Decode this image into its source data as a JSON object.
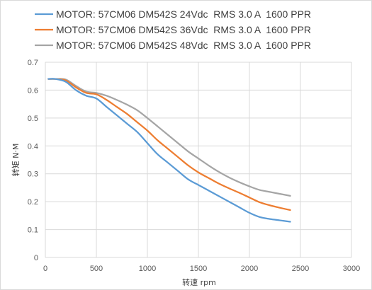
{
  "chart_data": {
    "type": "line",
    "title": "",
    "xlabel": "转速 rpm",
    "ylabel": "转矩 N·M",
    "xlim": [
      0,
      3000
    ],
    "ylim": [
      0,
      0.7
    ],
    "x_ticks": [
      "0",
      "500",
      "1000",
      "1500",
      "2000",
      "2500",
      "3000"
    ],
    "y_ticks": [
      "0",
      "0.1",
      "0.2",
      "0.3",
      "0.4",
      "0.5",
      "0.6",
      "0.7"
    ],
    "grid": true,
    "legend_position": "top",
    "series": [
      {
        "name": "MOTOR: 57CM06 DM542S 24Vdc  RMS 3.0 A  1600 PPR",
        "color": "#5b9bd5",
        "points": [
          [
            30,
            0.64
          ],
          [
            100,
            0.64
          ],
          [
            200,
            0.63
          ],
          [
            300,
            0.6
          ],
          [
            400,
            0.58
          ],
          [
            500,
            0.57
          ],
          [
            600,
            0.54
          ],
          [
            700,
            0.51
          ],
          [
            800,
            0.48
          ],
          [
            900,
            0.45
          ],
          [
            1000,
            0.41
          ],
          [
            1100,
            0.37
          ],
          [
            1200,
            0.34
          ],
          [
            1300,
            0.31
          ],
          [
            1400,
            0.28
          ],
          [
            1500,
            0.26
          ],
          [
            1600,
            0.24
          ],
          [
            1700,
            0.22
          ],
          [
            1800,
            0.2
          ],
          [
            1900,
            0.18
          ],
          [
            2000,
            0.16
          ],
          [
            2100,
            0.145
          ],
          [
            2200,
            0.138
          ],
          [
            2300,
            0.133
          ],
          [
            2400,
            0.128
          ]
        ]
      },
      {
        "name": "MOTOR: 57CM06 DM542S 36Vdc  RMS 3.0 A  1600 PPR",
        "color": "#ed7d31",
        "points": [
          [
            30,
            0.64
          ],
          [
            100,
            0.64
          ],
          [
            200,
            0.635
          ],
          [
            300,
            0.61
          ],
          [
            400,
            0.59
          ],
          [
            500,
            0.585
          ],
          [
            600,
            0.565
          ],
          [
            700,
            0.54
          ],
          [
            800,
            0.515
          ],
          [
            900,
            0.485
          ],
          [
            1000,
            0.455
          ],
          [
            1100,
            0.42
          ],
          [
            1200,
            0.39
          ],
          [
            1300,
            0.36
          ],
          [
            1400,
            0.33
          ],
          [
            1500,
            0.305
          ],
          [
            1600,
            0.285
          ],
          [
            1700,
            0.265
          ],
          [
            1800,
            0.248
          ],
          [
            1900,
            0.232
          ],
          [
            2000,
            0.215
          ],
          [
            2100,
            0.198
          ],
          [
            2200,
            0.187
          ],
          [
            2300,
            0.178
          ],
          [
            2400,
            0.17
          ]
        ]
      },
      {
        "name": "MOTOR: 57CM06 DM542S 48Vdc  RMS 3.0 A  1600 PPR",
        "color": "#a5a5a5",
        "points": [
          [
            30,
            0.64
          ],
          [
            100,
            0.64
          ],
          [
            200,
            0.638
          ],
          [
            300,
            0.615
          ],
          [
            400,
            0.595
          ],
          [
            500,
            0.59
          ],
          [
            600,
            0.58
          ],
          [
            700,
            0.565
          ],
          [
            800,
            0.548
          ],
          [
            900,
            0.528
          ],
          [
            1000,
            0.5
          ],
          [
            1100,
            0.47
          ],
          [
            1200,
            0.44
          ],
          [
            1300,
            0.41
          ],
          [
            1400,
            0.38
          ],
          [
            1500,
            0.355
          ],
          [
            1600,
            0.33
          ],
          [
            1700,
            0.307
          ],
          [
            1800,
            0.287
          ],
          [
            1900,
            0.27
          ],
          [
            2000,
            0.255
          ],
          [
            2100,
            0.242
          ],
          [
            2200,
            0.235
          ],
          [
            2300,
            0.228
          ],
          [
            2400,
            0.221
          ]
        ]
      }
    ]
  }
}
